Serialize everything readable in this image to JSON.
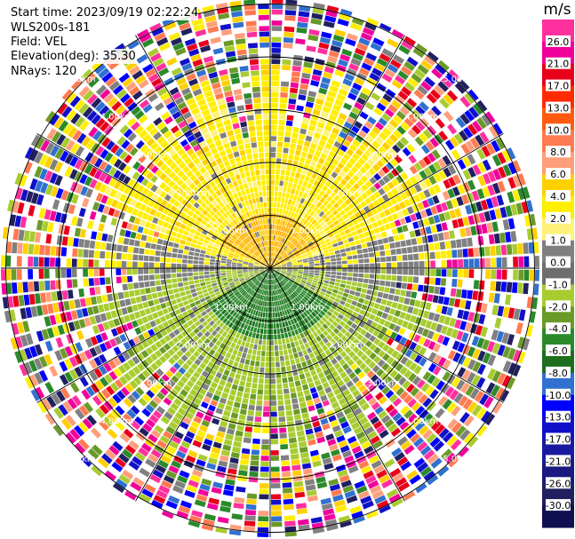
{
  "header": {
    "start_time": "Start time: 2023/09/19 02:22:24",
    "instrument": "WLS200s-181",
    "field": "Field: VEL",
    "elevation": "Elevation(deg): 35.30",
    "nrays": "NRays: 120"
  },
  "range_rings": [
    "1.00km",
    "2.00km",
    "3.00km",
    "4.00km",
    "5.00km"
  ],
  "colorbar": {
    "unit": "m/s",
    "ticks": [
      "26.0",
      "21.0",
      "17.0",
      "13.0",
      "10.0",
      "8.0",
      "6.0",
      "4.0",
      "2.0",
      "1.0",
      "0.0",
      "-1.0",
      "-2.0",
      "-4.0",
      "-6.0",
      "-8.0",
      "-10.0",
      "-13.0",
      "-17.0",
      "-21.0",
      "-26.0",
      "-30.0"
    ],
    "colors": [
      "#ff2f9e",
      "#f0009a",
      "#e8001a",
      "#ff2a00",
      "#ff5a10",
      "#ff7a50",
      "#ff9e7a",
      "#ffd000",
      "#ffee00",
      "#fff27a",
      "#808080",
      "#6e6e6e",
      "#a8cc30",
      "#6a9a28",
      "#2a8a2a",
      "#1e6e1e",
      "#3070d0",
      "#0000ff",
      "#1010c8",
      "#1a1aa0",
      "#1a1a80",
      "#202060",
      "#101050"
    ]
  },
  "chart_data": {
    "type": "radar-ppi",
    "field": "VEL",
    "units": "m/s",
    "elevation_deg": 35.3,
    "nrays": 120,
    "range_rings_km": [
      1,
      2,
      3,
      4,
      5
    ]
  }
}
